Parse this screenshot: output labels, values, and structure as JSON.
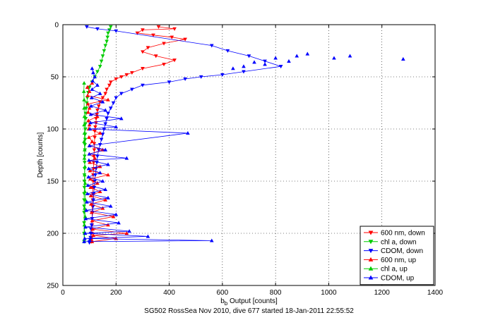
{
  "chart_data": {
    "type": "scatter",
    "caption": "SG502 RossSea Nov 2010, dive 677 started 18-Jan-2011 22:55:52",
    "ylabel": "Depth [counts]",
    "xlabel_main": "b",
    "xlabel_sub": "b",
    "xlabel_rest": " Output [counts]",
    "xlim": [
      0,
      1400
    ],
    "ylim": [
      0,
      250
    ],
    "y_reversed": true,
    "grid": true,
    "legend_position": "bottom-right",
    "x_ticks": [
      "0",
      "200",
      "400",
      "600",
      "800",
      "1000",
      "1200",
      "1400"
    ],
    "y_ticks": [
      "0",
      "50",
      "100",
      "150",
      "200",
      "250"
    ],
    "colors": {
      "red": "#ff0000",
      "green": "#00cc00",
      "blue": "#0000ff"
    },
    "series": [
      {
        "name": "600 nm, down",
        "color": "#ff0000",
        "marker": "triangle-down",
        "x": [
          360,
          420,
          300,
          280,
          340,
          410,
          460,
          380,
          320,
          300,
          350,
          420,
          380,
          300,
          260,
          240,
          220,
          200,
          180,
          175,
          165,
          160,
          150,
          140,
          135,
          130,
          128,
          125,
          125,
          122,
          120,
          120,
          118,
          118,
          117,
          116,
          115,
          114,
          114,
          113,
          112,
          112,
          111,
          110,
          110,
          110,
          109,
          109,
          108,
          108,
          108
        ],
        "y": [
          2,
          4,
          5,
          8,
          10,
          12,
          14,
          18,
          22,
          26,
          30,
          34,
          38,
          42,
          46,
          48,
          50,
          52,
          55,
          58,
          62,
          66,
          70,
          74,
          78,
          82,
          86,
          90,
          94,
          98,
          102,
          108,
          114,
          120,
          126,
          132,
          138,
          144,
          150,
          156,
          162,
          168,
          174,
          180,
          186,
          192,
          196,
          200,
          204,
          206,
          208
        ]
      },
      {
        "name": "chl a, down",
        "color": "#00cc00",
        "marker": "triangle-down",
        "x": [
          180,
          175,
          170,
          168,
          165,
          160,
          155,
          150,
          145,
          140,
          130,
          120,
          110,
          100,
          95,
          92,
          90,
          88,
          87,
          86,
          85,
          85,
          84,
          84,
          83,
          83,
          82,
          82,
          82,
          81,
          81,
          81,
          80,
          80,
          80,
          80,
          80,
          80,
          80
        ],
        "y": [
          2,
          5,
          8,
          12,
          16,
          20,
          25,
          30,
          35,
          40,
          45,
          50,
          55,
          60,
          65,
          70,
          75,
          80,
          85,
          90,
          95,
          100,
          105,
          110,
          115,
          120,
          126,
          132,
          138,
          144,
          150,
          156,
          162,
          168,
          174,
          180,
          190,
          200,
          208
        ]
      },
      {
        "name": "CDOM, down",
        "color": "#0000ff",
        "marker": "triangle-down",
        "x": [
          90,
          130,
          200,
          560,
          620,
          700,
          760,
          820,
          680,
          600,
          520,
          460,
          400,
          300,
          260,
          220,
          200,
          190,
          180,
          170,
          165,
          160,
          155,
          150,
          145,
          140,
          135,
          130,
          128,
          125,
          122,
          120,
          118,
          116,
          115,
          114,
          112,
          110,
          108,
          106,
          105,
          104,
          102,
          100,
          100
        ],
        "y": [
          2,
          4,
          6,
          20,
          25,
          30,
          35,
          40,
          45,
          48,
          50,
          52,
          55,
          58,
          62,
          66,
          70,
          75,
          80,
          85,
          90,
          95,
          100,
          105,
          110,
          115,
          120,
          126,
          132,
          138,
          144,
          150,
          156,
          162,
          168,
          174,
          180,
          186,
          192,
          196,
          200,
          204,
          206,
          208,
          209
        ]
      },
      {
        "name": "600 nm, up",
        "color": "#ff0000",
        "marker": "triangle-up",
        "x": [
          110,
          200,
          115,
          240,
          112,
          170,
          110,
          190,
          108,
          150,
          106,
          160,
          105,
          140,
          104,
          130,
          103,
          170,
          102,
          140,
          101,
          120,
          100,
          150,
          100,
          110,
          98,
          140,
          97,
          100,
          96,
          130,
          95,
          100,
          94,
          170,
          93,
          100,
          92,
          110
        ],
        "y": [
          208,
          205,
          202,
          200,
          196,
          192,
          188,
          184,
          180,
          176,
          172,
          168,
          164,
          160,
          156,
          152,
          148,
          144,
          140,
          136,
          132,
          128,
          124,
          120,
          116,
          112,
          108,
          104,
          100,
          96,
          92,
          88,
          84,
          80,
          76,
          72,
          68,
          64,
          60,
          56
        ]
      },
      {
        "name": "chl a, up",
        "color": "#00cc00",
        "marker": "triangle-up",
        "x": [
          80,
          82,
          81,
          84,
          82,
          85,
          83,
          84,
          82,
          83,
          81,
          82,
          80,
          81,
          80,
          81,
          80,
          80,
          79,
          80
        ],
        "y": [
          208,
          200,
          192,
          184,
          176,
          168,
          160,
          152,
          144,
          136,
          128,
          120,
          112,
          104,
          96,
          88,
          80,
          72,
          64,
          56
        ]
      },
      {
        "name": "CDOM, up",
        "color": "#0000ff",
        "marker": "triangle-up",
        "x": [
          80,
          560,
          82,
          320,
          84,
          250,
          85,
          210,
          86,
          200,
          88,
          180,
          90,
          170,
          92,
          160,
          94,
          150,
          96,
          140,
          97,
          170,
          98,
          240,
          99,
          160,
          100,
          470,
          102,
          200,
          104,
          220,
          105,
          160,
          106,
          150,
          108,
          140,
          110,
          130,
          112,
          120,
          114,
          110
        ],
        "y": [
          208,
          207,
          205,
          203,
          200,
          198,
          194,
          190,
          186,
          182,
          178,
          174,
          170,
          166,
          162,
          158,
          154,
          150,
          146,
          142,
          138,
          134,
          130,
          128,
          124,
          120,
          116,
          104,
          100,
          98,
          94,
          90,
          86,
          82,
          78,
          74,
          70,
          66,
          62,
          58,
          54,
          50,
          46,
          42
        ]
      }
    ],
    "extra_points": {
      "blue_up_far": {
        "x": [
          1280,
          1080,
          1020,
          920,
          880,
          850,
          800,
          760,
          720,
          680,
          640
        ],
        "y": [
          33,
          30,
          32,
          28,
          30,
          35,
          32,
          38,
          36,
          40,
          42
        ]
      }
    }
  }
}
